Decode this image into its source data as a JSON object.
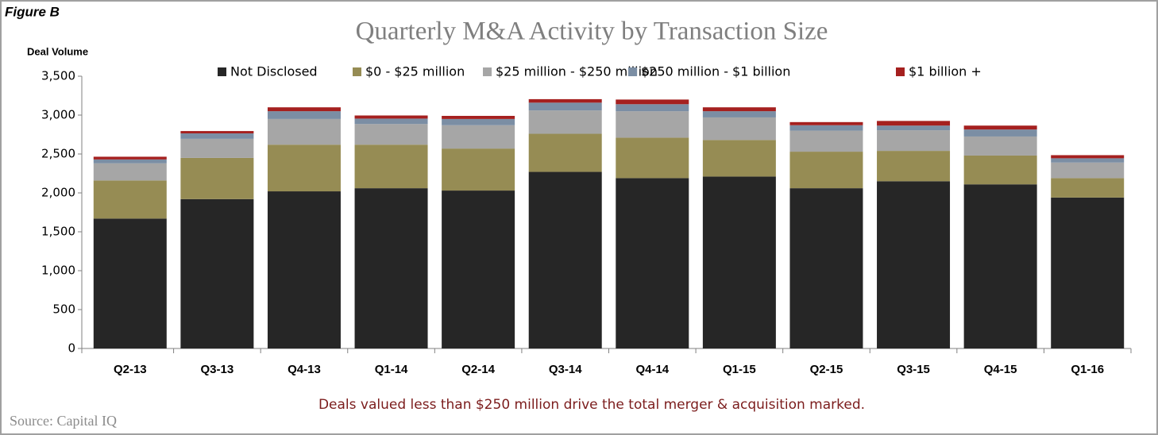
{
  "chart_data": {
    "type": "stacked_bar",
    "label": "Figure B",
    "title": "Quarterly M&A Activity by Transaction Size",
    "y_axis_label": "Deal Volume",
    "categories": [
      "Q2-13",
      "Q3-13",
      "Q4-13",
      "Q1-14",
      "Q2-14",
      "Q3-14",
      "Q4-14",
      "Q1-15",
      "Q2-15",
      "Q3-15",
      "Q4-15",
      "Q1-16"
    ],
    "series": [
      {
        "name": "Not Disclosed",
        "color": "#262626",
        "values": [
          1670,
          1920,
          2020,
          2060,
          2030,
          2270,
          2190,
          2210,
          2060,
          2150,
          2110,
          1940
        ]
      },
      {
        "name": "$0 - $25 million",
        "color": "#968c54",
        "values": [
          490,
          530,
          600,
          560,
          540,
          490,
          520,
          470,
          470,
          390,
          370,
          250
        ]
      },
      {
        "name": "$25 million - $250 million",
        "color": "#a6a6a6",
        "values": [
          220,
          245,
          330,
          265,
          300,
          300,
          340,
          290,
          270,
          265,
          245,
          200
        ]
      },
      {
        "name": "$250 million - $1 billion",
        "color": "#7b8ea4",
        "values": [
          50,
          70,
          100,
          70,
          80,
          100,
          90,
          80,
          70,
          60,
          90,
          55
        ]
      },
      {
        "name": "$1 billion +",
        "color": "#a5201f",
        "values": [
          35,
          30,
          50,
          40,
          40,
          45,
          60,
          50,
          40,
          60,
          50,
          40
        ]
      }
    ],
    "ylim": [
      0,
      3500
    ],
    "yticks": [
      0,
      500,
      {
        "value": 1000,
        "label": "1,000"
      },
      {
        "value": 1500,
        "label": "1,500"
      },
      {
        "value": 2000,
        "label": "2,000"
      },
      {
        "value": 2500,
        "label": "2,500"
      },
      {
        "value": 3000,
        "label": "3,000"
      },
      {
        "value": 3500,
        "label": "3,500"
      }
    ],
    "grid": false,
    "annotation": "Deals valued less than $250 million drive the total merger & acquisition marked.",
    "source": "Source: Capital IQ"
  }
}
